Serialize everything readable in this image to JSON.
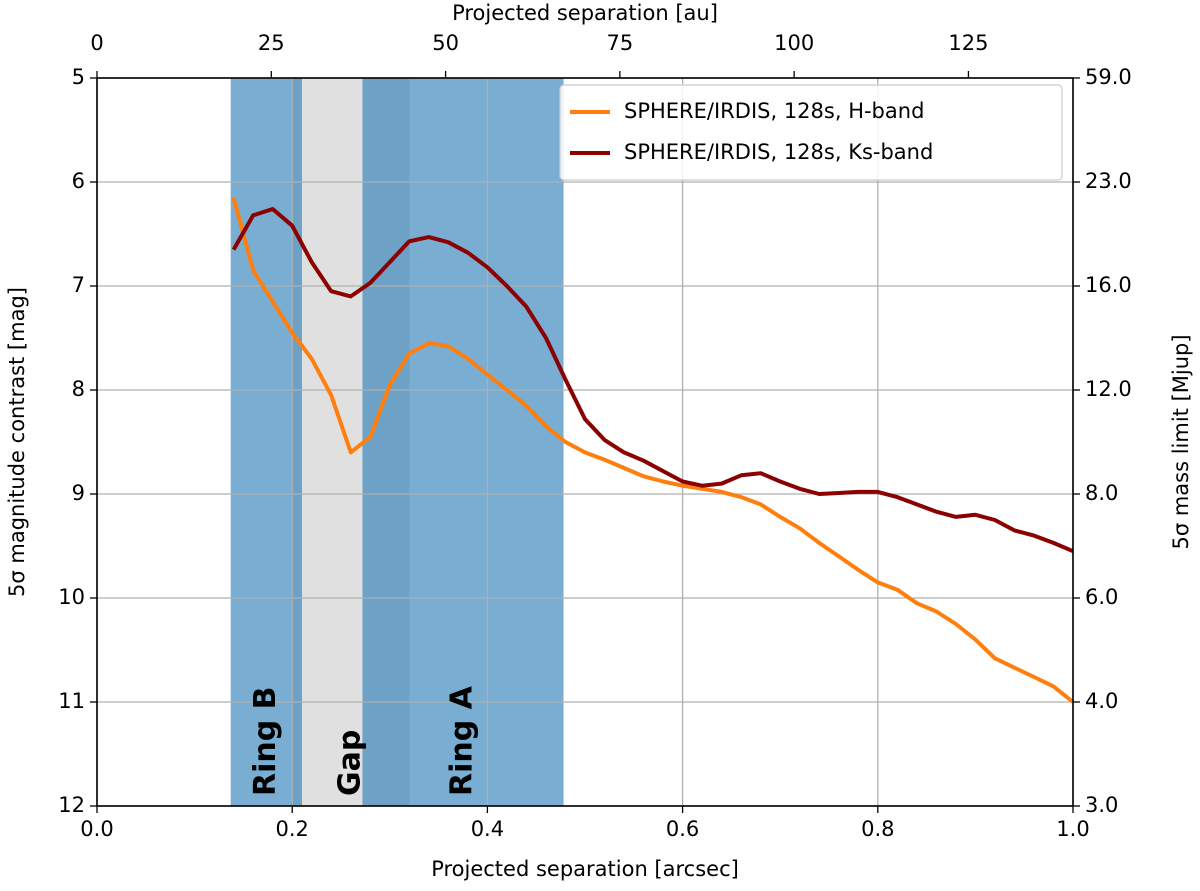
{
  "chart_data": {
    "type": "line",
    "xlabel": "Projected separation [arcsec]",
    "x2label": "Projected separation [au]",
    "ylabel": "5σ magnitude contrast [mag]",
    "y2label": "5σ mass limit [Mjup]",
    "x": [
      0.14,
      0.16,
      0.18,
      0.2,
      0.22,
      0.24,
      0.26,
      0.28,
      0.3,
      0.32,
      0.34,
      0.36,
      0.38,
      0.4,
      0.42,
      0.44,
      0.46,
      0.48,
      0.5,
      0.52,
      0.54,
      0.56,
      0.58,
      0.6,
      0.62,
      0.64,
      0.66,
      0.68,
      0.7,
      0.72,
      0.74,
      0.76,
      0.78,
      0.8,
      0.82,
      0.84,
      0.86,
      0.88,
      0.9,
      0.92,
      0.94,
      0.96,
      0.98,
      1.0
    ],
    "series": [
      {
        "name": "SPHERE/IRDIS, 128s, H-band",
        "color": "#ff7f0e",
        "values": [
          6.15,
          6.85,
          7.15,
          7.45,
          7.7,
          8.05,
          8.6,
          8.45,
          7.95,
          7.65,
          7.55,
          7.58,
          7.7,
          7.85,
          8.0,
          8.15,
          8.35,
          8.5,
          8.6,
          8.67,
          8.75,
          8.83,
          8.88,
          8.92,
          8.95,
          8.98,
          9.03,
          9.1,
          9.22,
          9.33,
          9.47,
          9.6,
          9.73,
          9.85,
          9.92,
          10.05,
          10.13,
          10.25,
          10.4,
          10.58,
          10.67,
          10.76,
          10.85,
          11.0
        ]
      },
      {
        "name": "SPHERE/IRDIS, 128s, Ks-band",
        "color": "#8b0000",
        "values": [
          6.65,
          6.32,
          6.26,
          6.42,
          6.77,
          7.05,
          7.1,
          6.97,
          6.77,
          6.57,
          6.53,
          6.58,
          6.68,
          6.82,
          7.0,
          7.2,
          7.5,
          7.9,
          8.28,
          8.48,
          8.6,
          8.68,
          8.78,
          8.88,
          8.92,
          8.9,
          8.82,
          8.8,
          8.88,
          8.95,
          9.0,
          8.99,
          8.98,
          8.98,
          9.03,
          9.1,
          9.17,
          9.22,
          9.2,
          9.25,
          9.35,
          9.4,
          9.47,
          9.55
        ]
      }
    ],
    "bands": [
      {
        "label": "Gap",
        "x0": 0.2,
        "x1": 0.32,
        "color": "#e0e0e0",
        "opacity": 1,
        "label_x": 0.26
      },
      {
        "label": "Ring B",
        "x0": 0.137,
        "x1": 0.21,
        "color": "#1f77b4",
        "opacity": 0.6,
        "label_x": 0.1735
      },
      {
        "label": "Ring A",
        "x0": 0.272,
        "x1": 0.478,
        "color": "#1f77b4",
        "opacity": 0.6,
        "label_x": 0.375
      }
    ],
    "xlim": [
      0,
      1
    ],
    "xticks": [
      {
        "value": 0,
        "label": "0.0"
      },
      0.2,
      0.4,
      0.6,
      0.8,
      {
        "value": 1,
        "label": "1.0"
      }
    ],
    "x2lim": [
      0,
      140
    ],
    "x2ticks": [
      0,
      25,
      50,
      75,
      100,
      125
    ],
    "ylim": [
      5,
      12
    ],
    "invert_y": true,
    "yticks": [
      5,
      6,
      7,
      8,
      9,
      10,
      11,
      12
    ],
    "y2ticks": [
      {
        "value": 59,
        "label": "59.0"
      },
      {
        "value": 23,
        "label": "23.0"
      },
      {
        "value": 16,
        "label": "16.0"
      },
      {
        "value": 12,
        "label": "12.0"
      },
      {
        "value": 8,
        "label": "8.0"
      },
      {
        "value": 6,
        "label": "6.0"
      },
      {
        "value": 4,
        "label": "4.0"
      },
      {
        "value": 3,
        "label": "3.0"
      }
    ],
    "grid": true,
    "legend": "upper right"
  }
}
